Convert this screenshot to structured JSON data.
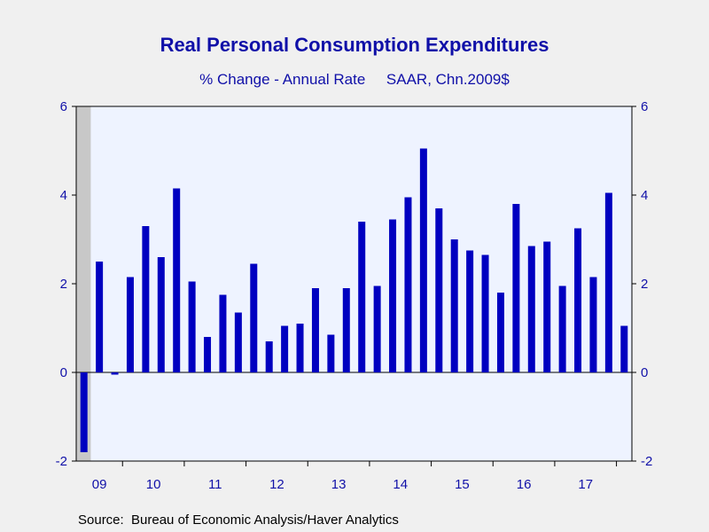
{
  "chart_data": {
    "type": "bar",
    "title": "Real Personal Consumption Expenditures",
    "subtitle": "% Change - Annual Rate     SAAR, Chn.2009$",
    "source": "Source:  Bureau of Economic Analysis/Haver Analytics",
    "ylim": [
      -2,
      6
    ],
    "yticks": [
      -2,
      0,
      2,
      4,
      6
    ],
    "year_labels": [
      "09",
      "10",
      "11",
      "12",
      "13",
      "14",
      "15",
      "16",
      "17"
    ],
    "recession_shading": {
      "start_quarter_index": 0,
      "end_quarter_index": 0
    },
    "categories": [
      "2009Q2",
      "2009Q3",
      "2009Q4",
      "2010Q1",
      "2010Q2",
      "2010Q3",
      "2010Q4",
      "2011Q1",
      "2011Q2",
      "2011Q3",
      "2011Q4",
      "2012Q1",
      "2012Q2",
      "2012Q3",
      "2012Q4",
      "2013Q1",
      "2013Q2",
      "2013Q3",
      "2013Q4",
      "2014Q1",
      "2014Q2",
      "2014Q3",
      "2014Q4",
      "2015Q1",
      "2015Q2",
      "2015Q3",
      "2015Q4",
      "2016Q1",
      "2016Q2",
      "2016Q3",
      "2016Q4",
      "2017Q1",
      "2017Q2",
      "2017Q3",
      "2017Q4",
      "2018Q1"
    ],
    "values": [
      -1.8,
      2.5,
      -0.05,
      2.15,
      3.3,
      2.6,
      4.15,
      2.05,
      0.8,
      1.75,
      1.35,
      2.45,
      0.7,
      1.05,
      1.1,
      1.9,
      0.85,
      1.9,
      3.4,
      1.95,
      3.45,
      3.95,
      5.05,
      3.7,
      3.0,
      2.75,
      2.65,
      1.8,
      3.8,
      2.85,
      2.95,
      1.95,
      3.25,
      2.15,
      4.05,
      1.05
    ],
    "colors": {
      "bar": "#0000c0",
      "plot_bg": "#eef3ff",
      "recession": "#c8c8c8",
      "text": "#1010a8"
    },
    "grid": false
  }
}
